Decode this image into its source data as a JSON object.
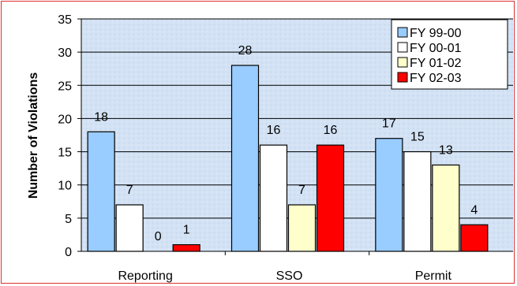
{
  "chart_data": {
    "type": "bar",
    "categories": [
      "Reporting",
      "SSO",
      "Permit"
    ],
    "series": [
      {
        "name": "FY 99-00",
        "values": [
          18,
          28,
          17
        ],
        "color": "#99ccff"
      },
      {
        "name": "FY 00-01",
        "values": [
          7,
          16,
          15
        ],
        "color": "#ffffff"
      },
      {
        "name": "FY 01-02",
        "values": [
          0,
          7,
          13
        ],
        "color": "#ffffcc"
      },
      {
        "name": "FY 02-03",
        "values": [
          1,
          16,
          4
        ],
        "color": "#ff0000"
      }
    ],
    "title": "",
    "xlabel": "",
    "ylabel": "Number of Violations",
    "ylim": [
      0,
      35
    ],
    "yticks": [
      0,
      5,
      10,
      15,
      20,
      25,
      30,
      35
    ],
    "grid": true,
    "legend_position": "top-right",
    "plot_background": "#d6e4f5",
    "frame_color": "#e03030"
  }
}
